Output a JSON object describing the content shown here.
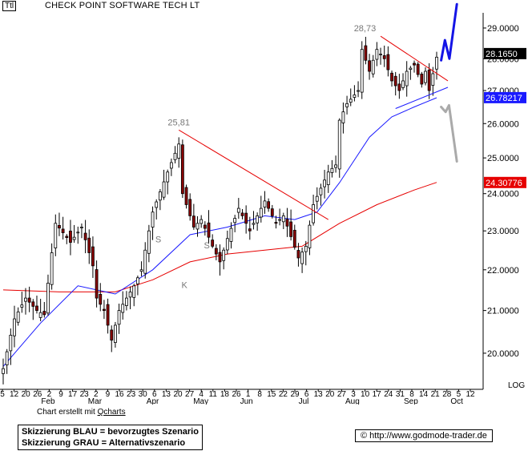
{
  "header": {
    "tag": "Ttl",
    "title": "CHECK POINT SOFTWARE TECH LT"
  },
  "credit": {
    "prefix": "Chart erstellt mit",
    "link": "Qcharts"
  },
  "legend": {
    "blue": "Skizzierung BLAU = bevorzugtes Szenario",
    "gray": "Skizzierung GRAU = Alternativszenario"
  },
  "footer": {
    "url": "© http://www.godmode-trader.de"
  },
  "chart_data": {
    "type": "candlestick",
    "title": "CHECK POINT SOFTWARE TECH LT",
    "y_scale": "log",
    "y_scale_label": "LOG",
    "ylim": [
      19.35,
      29.8
    ],
    "y_ticks": [
      "20.0000",
      "21.0000",
      "22.0000",
      "23.0000",
      "24.0000",
      "25.0000",
      "26.0000",
      "27.0000",
      "28.0000",
      "29.0000"
    ],
    "x_day_ticks": [
      "5",
      "12",
      "20",
      "26",
      "2",
      "9",
      "17",
      "23",
      "2",
      "9",
      "16",
      "23",
      "30",
      "6",
      "13",
      "20",
      "27",
      "4",
      "11",
      "18",
      "26",
      "1",
      "8",
      "15",
      "22",
      "29",
      "6",
      "13",
      "20",
      "27",
      "3",
      "10",
      "17",
      "24",
      "31",
      "8",
      "14",
      "21",
      "28",
      "5",
      "12"
    ],
    "x_month_labels": [
      "Feb",
      "Mar",
      "Apr",
      "May",
      "Jun",
      "Jul",
      "Aug",
      "Sep",
      "Oct"
    ],
    "price_labels": [
      {
        "text": "28.1650",
        "bg": "#000000",
        "fg": "#ffffff"
      },
      {
        "text": "26.78217",
        "bg": "#1a1aff",
        "fg": "#ffffff"
      },
      {
        "text": "24.30776",
        "bg": "#e60000",
        "fg": "#ffffff"
      }
    ],
    "annotations": [
      {
        "text": "25,81",
        "y": 25.81
      },
      {
        "text": "28,73",
        "y": 28.73
      },
      {
        "text": "S",
        "y": 22.7
      },
      {
        "text": "K",
        "y": 21.55
      },
      {
        "text": "S",
        "y": 22.55
      }
    ],
    "anchors": [
      {
        "d": 0,
        "v": 19.65
      },
      {
        "d": 3,
        "v": 20.8
      },
      {
        "d": 6,
        "v": 21.3
      },
      {
        "d": 9,
        "v": 21.0
      },
      {
        "d": 11,
        "v": 20.9
      },
      {
        "d": 14,
        "v": 23.2
      },
      {
        "d": 18,
        "v": 22.7
      },
      {
        "d": 21,
        "v": 23.1
      },
      {
        "d": 24,
        "v": 22.1
      },
      {
        "d": 25,
        "v": 21.3
      },
      {
        "d": 27,
        "v": 21.0
      },
      {
        "d": 29,
        "v": 20.3
      },
      {
        "d": 31,
        "v": 21.0
      },
      {
        "d": 35,
        "v": 21.6
      },
      {
        "d": 37,
        "v": 22.0
      },
      {
        "d": 40,
        "v": 23.5
      },
      {
        "d": 44,
        "v": 24.6
      },
      {
        "d": 47,
        "v": 25.4
      },
      {
        "d": 48,
        "v": 24.0
      },
      {
        "d": 51,
        "v": 23.1
      },
      {
        "d": 53,
        "v": 23.3
      },
      {
        "d": 56,
        "v": 22.6
      },
      {
        "d": 58,
        "v": 22.2
      },
      {
        "d": 60,
        "v": 22.8
      },
      {
        "d": 63,
        "v": 23.6
      },
      {
        "d": 66,
        "v": 23.0
      },
      {
        "d": 70,
        "v": 23.8
      },
      {
        "d": 73,
        "v": 23.2
      },
      {
        "d": 75,
        "v": 23.4
      },
      {
        "d": 79,
        "v": 22.3
      },
      {
        "d": 81,
        "v": 22.6
      },
      {
        "d": 83,
        "v": 23.7
      },
      {
        "d": 87,
        "v": 24.6
      },
      {
        "d": 89,
        "v": 24.8
      },
      {
        "d": 90,
        "v": 26.1
      },
      {
        "d": 92,
        "v": 26.6
      },
      {
        "d": 95,
        "v": 27.0
      },
      {
        "d": 96,
        "v": 28.3
      },
      {
        "d": 98,
        "v": 27.6
      },
      {
        "d": 100,
        "v": 28.3
      },
      {
        "d": 102,
        "v": 28.0
      },
      {
        "d": 104,
        "v": 27.3
      },
      {
        "d": 106,
        "v": 27.0
      },
      {
        "d": 108,
        "v": 27.6
      },
      {
        "d": 110,
        "v": 27.8
      },
      {
        "d": 112,
        "v": 27.2
      },
      {
        "d": 113,
        "v": 27.6
      },
      {
        "d": 114,
        "v": 27.0
      },
      {
        "d": 116,
        "v": 28.05
      }
    ],
    "ma_blue": [
      {
        "d": 0,
        "v": 19.7
      },
      {
        "d": 10,
        "v": 20.7
      },
      {
        "d": 20,
        "v": 21.6
      },
      {
        "d": 30,
        "v": 21.4
      },
      {
        "d": 40,
        "v": 22.0
      },
      {
        "d": 50,
        "v": 22.9
      },
      {
        "d": 60,
        "v": 23.1
      },
      {
        "d": 70,
        "v": 23.4
      },
      {
        "d": 78,
        "v": 23.3
      },
      {
        "d": 84,
        "v": 23.5
      },
      {
        "d": 90,
        "v": 24.3
      },
      {
        "d": 98,
        "v": 25.6
      },
      {
        "d": 104,
        "v": 26.2
      },
      {
        "d": 110,
        "v": 26.5
      },
      {
        "d": 116,
        "v": 26.78
      }
    ],
    "ma_red": [
      {
        "d": 0,
        "v": 21.5
      },
      {
        "d": 15,
        "v": 21.45
      },
      {
        "d": 30,
        "v": 21.45
      },
      {
        "d": 40,
        "v": 21.75
      },
      {
        "d": 50,
        "v": 22.2
      },
      {
        "d": 60,
        "v": 22.4
      },
      {
        "d": 70,
        "v": 22.5
      },
      {
        "d": 80,
        "v": 22.6
      },
      {
        "d": 90,
        "v": 23.2
      },
      {
        "d": 100,
        "v": 23.7
      },
      {
        "d": 110,
        "v": 24.1
      },
      {
        "d": 116,
        "v": 24.31
      }
    ],
    "trendlines": [
      {
        "color": "#e60000",
        "from": {
          "d": 47,
          "v": 25.81
        },
        "to": {
          "d": 87,
          "v": 23.3
        }
      },
      {
        "color": "#e60000",
        "from": {
          "d": 101,
          "v": 28.73
        },
        "to": {
          "d": 119,
          "v": 27.3
        }
      },
      {
        "color": "#1a1aff",
        "from": {
          "d": 105,
          "v": 26.45
        },
        "to": {
          "d": 119,
          "v": 27.1
        }
      }
    ],
    "scenario_blue": [
      {
        "d": 117.2,
        "v": 27.95
      },
      {
        "d": 118.2,
        "v": 28.6
      },
      {
        "d": 119.4,
        "v": 28.0
      },
      {
        "d": 121.4,
        "v": 29.8
      }
    ],
    "scenario_gray": [
      {
        "d": 117.2,
        "v": 26.5
      },
      {
        "d": 118.4,
        "v": 26.35
      },
      {
        "d": 119.3,
        "v": 26.55
      },
      {
        "d": 121.4,
        "v": 24.9
      }
    ],
    "colors": {
      "up_fill": "#ffffff",
      "down_fill": "#8b0000",
      "candle_outline": "#000000",
      "ma_blue": "#1a1aff",
      "ma_red": "#e60000",
      "scenario_blue": "#1414e6",
      "scenario_gray": "#aaaaaa",
      "annotation": "#777777"
    }
  }
}
